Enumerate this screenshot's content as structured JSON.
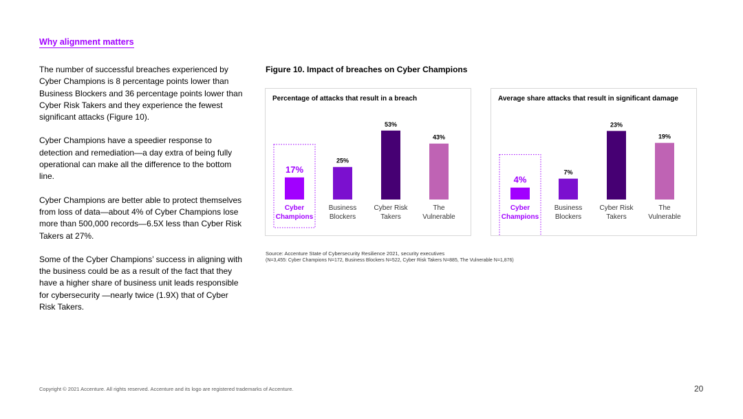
{
  "section_title": "Why alignment matters",
  "paragraphs": [
    "The number of successful breaches experienced by Cyber Champions is 8 percentage points lower than Business Blockers and 36 percentage points lower than Cyber Risk Takers and they experience the fewest significant attacks (Figure 10).",
    "Cyber Champions have a speedier response to detection and remediation—a day extra of being fully operational can make all the difference to the bottom line.",
    "Cyber Champions are better able to protect themselves from loss of data—about 4% of Cyber Champions lose more than 500,000 records—6.5X less than Cyber Risk Takers at 27%.",
    "Some of the Cyber Champions’ success in aligning with the business could be as a result of the fact that they have a higher share of business unit leads responsible for cybersecurity —nearly twice (1.9X) that of Cyber Risk Takers."
  ],
  "figure_title": "Figure 10. Impact of breaches on Cyber Champions",
  "chart_data": [
    {
      "type": "bar",
      "title": "Percentage of attacks that result in a breach",
      "categories": [
        [
          "Cyber",
          "Champions"
        ],
        [
          "Business",
          "Blockers"
        ],
        [
          "Cyber Risk",
          "Takers"
        ],
        [
          "The",
          "Vulnerable"
        ]
      ],
      "values": [
        17,
        25,
        53,
        43
      ],
      "value_labels": [
        "17%",
        "25%",
        "53%",
        "43%"
      ],
      "colors": [
        "#a100ff",
        "#7b10cf",
        "#460073",
        "#bf63b4"
      ],
      "highlight_index": 0,
      "highlight_color": "#a100ff",
      "ylim": [
        0,
        55
      ]
    },
    {
      "type": "bar",
      "title": "Average share attacks that result in significant damage",
      "categories": [
        [
          "Cyber",
          "Champions"
        ],
        [
          "Business",
          "Blockers"
        ],
        [
          "Cyber Risk",
          "Takers"
        ],
        [
          "The",
          "Vulnerable"
        ]
      ],
      "values": [
        4,
        7,
        23,
        19
      ],
      "value_labels": [
        "4%",
        "7%",
        "23%",
        "19%"
      ],
      "colors": [
        "#a100ff",
        "#7b10cf",
        "#460073",
        "#bf63b4"
      ],
      "highlight_index": 0,
      "highlight_color": "#a100ff",
      "ylim": [
        0,
        24
      ]
    }
  ],
  "source_line1": "Source: Accenture State of Cybersecurity Resilience 2021, security executives",
  "source_line2": "(N=3,455: Cyber Champions N=172, Business Blockers N=522, Cyber Risk Takers N=885, The Vulnerable N=1,876)",
  "footer": "Copyright © 2021 Accenture. All rights reserved. Accenture and its logo are registered trademarks of Accenture.",
  "page_number": "20"
}
